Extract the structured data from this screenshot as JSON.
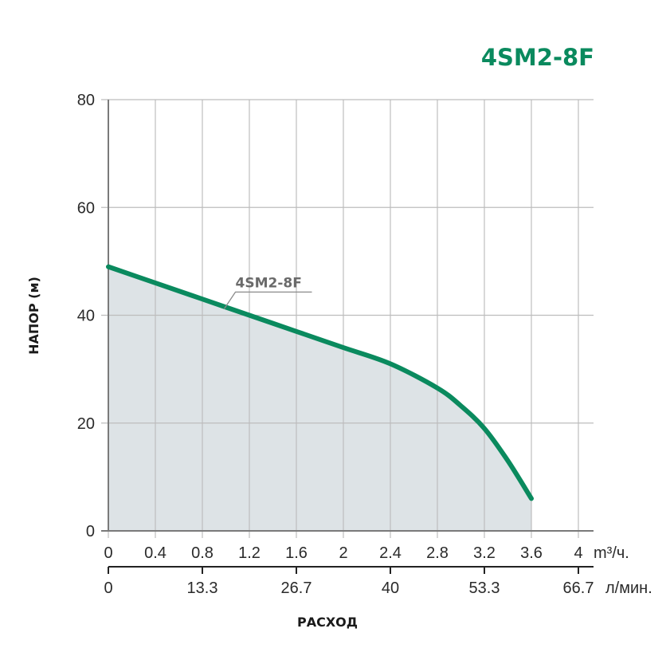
{
  "chart_data": {
    "type": "line",
    "title": "4SM2-8F",
    "ylabel": "НАПОР (м)",
    "xlabel": "РАСХОД",
    "x_unit": "m³/ч.",
    "x2_unit": "л/мин.",
    "xlim": [
      0,
      4
    ],
    "ylim": [
      0,
      80
    ],
    "x_ticks": [
      "0",
      "0.4",
      "0.8",
      "1.2",
      "1.6",
      "2",
      "2.4",
      "2.8",
      "3.2",
      "3.6",
      "4"
    ],
    "x2_ticks": [
      {
        "label": "0",
        "x": 0
      },
      {
        "label": "13.3",
        "x": 0.8
      },
      {
        "label": "26.7",
        "x": 1.6
      },
      {
        "label": "40",
        "x": 2.4
      },
      {
        "label": "53.3",
        "x": 3.2
      },
      {
        "label": "66.7",
        "x": 4.0
      }
    ],
    "y_ticks": [
      "0",
      "20",
      "40",
      "60",
      "80"
    ],
    "grid": true,
    "series": [
      {
        "name": "4SM2-8F",
        "color": "#0a8a5e",
        "fill": "#dde3e6",
        "x": [
          0,
          0.4,
          0.8,
          1.2,
          1.6,
          2.0,
          2.4,
          2.8,
          3.0,
          3.2,
          3.4,
          3.6
        ],
        "y": [
          49,
          46,
          43,
          40,
          37,
          34,
          31,
          26.5,
          23.2,
          19,
          13,
          6
        ]
      }
    ],
    "series_label_anchor": {
      "x": 1.0,
      "y": 41.5
    }
  },
  "colors": {
    "title": "#0a8a5e",
    "grid": "#bdbdbd",
    "axis": "#7a7a7a",
    "axis2": "#222222"
  }
}
